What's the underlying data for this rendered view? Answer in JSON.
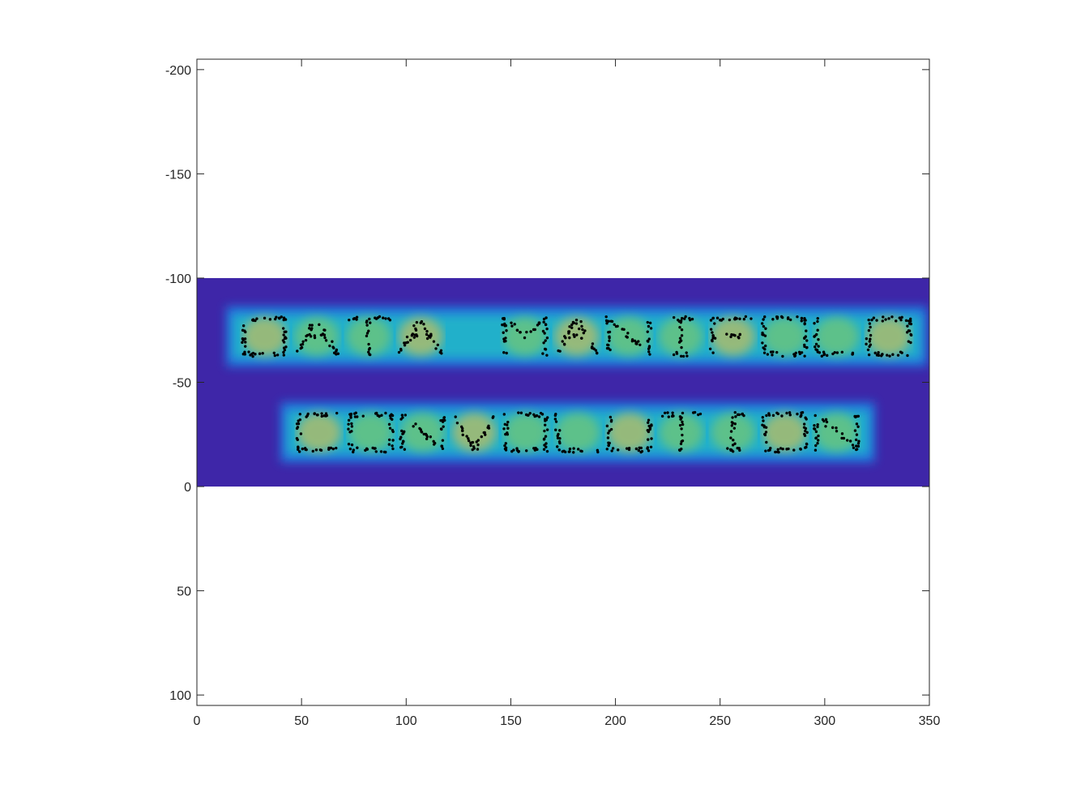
{
  "chart_data": {
    "type": "heatmap",
    "title": "",
    "xlabel": "",
    "ylabel": "",
    "xlim": [
      0,
      350
    ],
    "ylim": [
      -205,
      105
    ],
    "y_reversed": true,
    "x_ticks": [
      0,
      50,
      100,
      150,
      200,
      250,
      300,
      350
    ],
    "x_tick_labels": [
      "0",
      "50",
      "100",
      "150",
      "200",
      "250",
      "300",
      "350"
    ],
    "y_ticks": [
      -200,
      -150,
      -100,
      -50,
      0,
      50,
      100
    ],
    "y_tick_labels": [
      "-200",
      "-150",
      "-100",
      "-50",
      "0",
      "50",
      "100"
    ],
    "grid": false,
    "legend": "none",
    "heatmap": {
      "x_range": [
        0,
        350
      ],
      "y_range": [
        -100,
        0
      ],
      "colormap": "parula",
      "background_color": "#3e26a8"
    },
    "scatter_color": "#000000",
    "text_shapes": [
      {
        "text": "DATA MANIFOLD",
        "x_start": 20,
        "x_end": 343,
        "y_center": -72,
        "height": 17,
        "blank_positions": [
          4
        ]
      },
      {
        "text": "CONVOLUTION",
        "x_start": 46,
        "x_end": 318,
        "y_center": -26,
        "height": 17,
        "blank_positions": []
      }
    ]
  }
}
